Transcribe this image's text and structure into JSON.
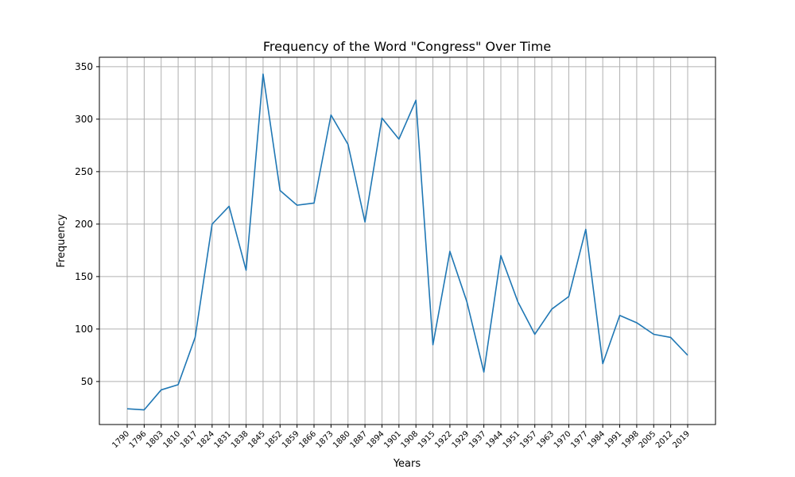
{
  "chart_data": {
    "type": "line",
    "title": "Frequency of the Word \"Congress\" Over Time",
    "xlabel": "Years",
    "ylabel": "Frequency",
    "grid": true,
    "ylim": [
      9,
      359
    ],
    "yticks": [
      50,
      100,
      150,
      200,
      250,
      300,
      350
    ],
    "line_color": "#1f77b4",
    "categories": [
      "1790",
      "1796",
      "1803",
      "1810",
      "1817",
      "1824",
      "1831",
      "1838",
      "1845",
      "1852",
      "1859",
      "1866",
      "1873",
      "1880",
      "1887",
      "1894",
      "1901",
      "1908",
      "1915",
      "1922",
      "1929",
      "1937",
      "1944",
      "1951",
      "1957",
      "1963",
      "1970",
      "1977",
      "1984",
      "1991",
      "1998",
      "2005",
      "2012",
      "2019"
    ],
    "series": [
      {
        "values": [
          24,
          23,
          42,
          47,
          92,
          200,
          217,
          156,
          343,
          232,
          218,
          220,
          304,
          276,
          202,
          301,
          281,
          318,
          85,
          174,
          126,
          59,
          170,
          126,
          95,
          119,
          131,
          195,
          67,
          113,
          106,
          95,
          92,
          75
        ]
      }
    ]
  }
}
